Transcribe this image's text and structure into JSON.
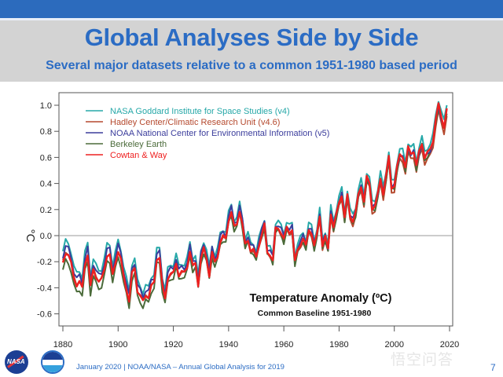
{
  "slide": {
    "title": "Global Analyses Side by Side",
    "subtitle": "Several major datasets relative to a common 1951-1980 based period",
    "footer": "January 2020  |  NOAA/NASA – Annual Global Analysis for 2019",
    "page_number": "7",
    "watermark": "悟空问答",
    "logos": [
      "nasa-logo",
      "noaa-logo"
    ]
  },
  "chart_data": {
    "type": "line",
    "title": "Temperature Anomaly (ºC)",
    "subtitle": "Common Baseline 1951-1980",
    "xlabel": "",
    "ylabel": "°C",
    "xlim": [
      1880,
      2020
    ],
    "ylim": [
      -0.7,
      1.1
    ],
    "xticks": [
      1880,
      1900,
      1920,
      1940,
      1960,
      1980,
      2000,
      2020
    ],
    "yticks": [
      -0.6,
      -0.4,
      -0.2,
      0.0,
      0.2,
      0.4,
      0.6,
      0.8,
      1.0
    ],
    "ytick_labels": [
      "-0.6",
      "-0.4",
      "-0.2",
      "0.0",
      "0.2",
      "0.4",
      "0.6",
      "0.8",
      "1.0"
    ],
    "grid": false,
    "reference_line": 0.0,
    "legend_position": "top-left",
    "x_start": 1880,
    "x_step": 1,
    "base_series": [
      -0.16,
      -0.08,
      -0.1,
      -0.17,
      -0.28,
      -0.33,
      -0.31,
      -0.36,
      -0.17,
      -0.1,
      -0.35,
      -0.22,
      -0.27,
      -0.31,
      -0.3,
      -0.22,
      -0.11,
      -0.11,
      -0.27,
      -0.17,
      -0.08,
      -0.15,
      -0.28,
      -0.37,
      -0.47,
      -0.26,
      -0.22,
      -0.39,
      -0.43,
      -0.48,
      -0.43,
      -0.44,
      -0.36,
      -0.34,
      -0.15,
      -0.14,
      -0.36,
      -0.46,
      -0.3,
      -0.27,
      -0.27,
      -0.19,
      -0.28,
      -0.26,
      -0.27,
      -0.22,
      -0.1,
      -0.22,
      -0.2,
      -0.36,
      -0.16,
      -0.09,
      -0.16,
      -0.29,
      -0.12,
      -0.2,
      -0.15,
      -0.03,
      0.0,
      -0.02,
      0.13,
      0.19,
      0.07,
      0.09,
      0.2,
      0.09,
      -0.07,
      -0.03,
      -0.11,
      -0.11,
      -0.17,
      -0.07,
      0.01,
      0.08,
      -0.13,
      -0.14,
      -0.19,
      0.05,
      0.06,
      0.03,
      -0.03,
      0.06,
      0.03,
      0.05,
      -0.2,
      -0.11,
      -0.06,
      -0.02,
      -0.08,
      0.05,
      0.03,
      -0.08,
      0.01,
      0.16,
      -0.07,
      -0.01,
      -0.1,
      0.18,
      0.07,
      0.16,
      0.26,
      0.32,
      0.14,
      0.31,
      0.16,
      0.12,
      0.18,
      0.32,
      0.39,
      0.27,
      0.45,
      0.41,
      0.22,
      0.23,
      0.32,
      0.45,
      0.33,
      0.46,
      0.61,
      0.38,
      0.39,
      0.53,
      0.63,
      0.62,
      0.53,
      0.68,
      0.64,
      0.66,
      0.54,
      0.65,
      0.72,
      0.61,
      0.64,
      0.67,
      0.74,
      0.9,
      1.01,
      0.92,
      0.85,
      0.98
    ],
    "series": [
      {
        "name": "NASA Goddard Institute for Space Studies (v4)",
        "color": "#26a8a8",
        "offset": [
          0.04,
          0.05,
          0.03
        ]
      },
      {
        "name": "Hadley Center/Climatic Research Unit (v4.6)",
        "color": "#b5492e",
        "offset": [
          -0.04,
          -0.01,
          -0.06
        ]
      },
      {
        "name": "NOAA National Center for Environmental Information (v5)",
        "color": "#3b3d9c",
        "offset": [
          0.0,
          0.03,
          -0.02
        ]
      },
      {
        "name": "Berkeley Earth",
        "color": "#4b6b3a",
        "offset": [
          -0.11,
          -0.02,
          -0.03
        ]
      },
      {
        "name": "Cowtan & Way",
        "color": "#ee2020",
        "offset": [
          -0.05,
          0.0,
          -0.01
        ]
      }
    ]
  }
}
